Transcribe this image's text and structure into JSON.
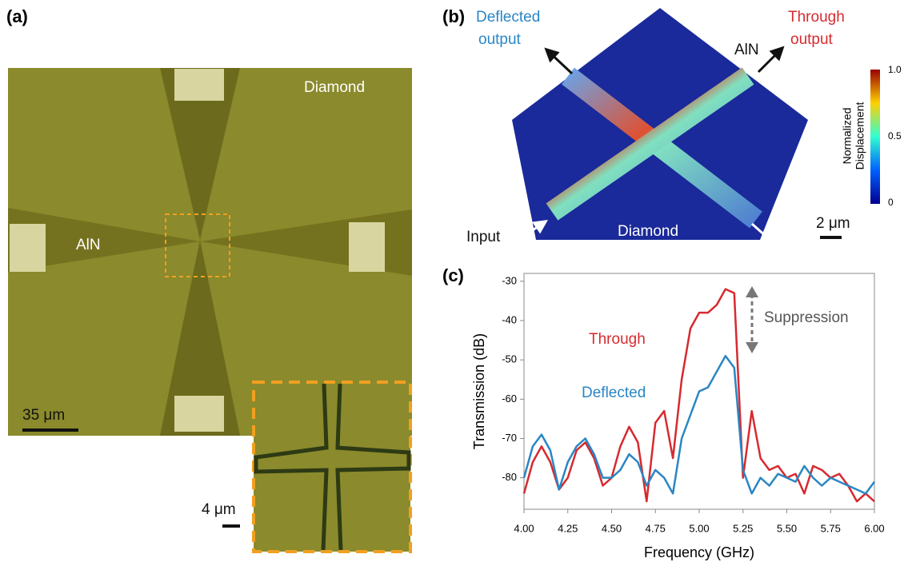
{
  "panels": {
    "a": {
      "label": "(a)",
      "diamond": "Diamond",
      "aln": "AlN",
      "scale_main": "35 μm",
      "scale_inset": "4 μm"
    },
    "b": {
      "label": "(b)",
      "deflected_output": [
        "Deflected",
        "output"
      ],
      "through_output": [
        "Through",
        "output"
      ],
      "aln": "AlN",
      "colorbar_title": [
        "Normalized",
        "Displacement"
      ],
      "colorbar_ticks": [
        "1.0",
        "0.5",
        "0"
      ],
      "input": "Input",
      "diamond": "Diamond",
      "scale": "2 μm"
    },
    "c": {
      "label": "(c)"
    }
  },
  "chart_data": {
    "type": "line",
    "x_label": "Frequency (GHz)",
    "y_label": "Transmission (dB)",
    "annotation": "Suppression",
    "x": [
      4.0,
      4.05,
      4.1,
      4.15,
      4.2,
      4.25,
      4.3,
      4.35,
      4.4,
      4.45,
      4.5,
      4.55,
      4.6,
      4.65,
      4.7,
      4.75,
      4.8,
      4.85,
      4.9,
      4.95,
      5.0,
      5.05,
      5.1,
      5.15,
      5.2,
      5.25,
      5.3,
      5.35,
      5.4,
      5.45,
      5.5,
      5.55,
      5.6,
      5.65,
      5.7,
      5.75,
      5.8,
      5.85,
      5.9,
      5.95,
      6.0
    ],
    "series": [
      {
        "name": "Through",
        "color": "#d62a2f",
        "values": [
          -84,
          -76,
          -72,
          -76,
          -83,
          -80,
          -73,
          -71,
          -75,
          -82,
          -80,
          -72,
          -67,
          -71,
          -86,
          -66,
          -63,
          -75,
          -55,
          -42,
          -38,
          -38,
          -36,
          -32,
          -33,
          -80,
          -63,
          -75,
          -78,
          -77,
          -80,
          -79,
          -84,
          -77,
          -78,
          -80,
          -79,
          -82,
          -86,
          -84,
          -86
        ]
      },
      {
        "name": "Deflected",
        "color": "#2a86c4",
        "values": [
          -80,
          -72,
          -69,
          -73,
          -83,
          -76,
          -72,
          -70,
          -74,
          -80,
          -80,
          -78,
          -74,
          -76,
          -82,
          -78,
          -80,
          -84,
          -70,
          -64,
          -58,
          -57,
          -53,
          -49,
          -52,
          -78,
          -84,
          -80,
          -82,
          -79,
          -80,
          -81,
          -77,
          -80,
          -82,
          -80,
          -81,
          -82,
          -83,
          -84,
          -81
        ]
      }
    ],
    "xlim": [
      4,
      6
    ],
    "xticks": [
      {
        "value": 4,
        "label": "4.00"
      },
      {
        "value": 4.25,
        "label": "4.25"
      },
      {
        "value": 4.5,
        "label": "4.50"
      },
      {
        "value": 4.75,
        "label": "4.75"
      },
      {
        "value": 5,
        "label": "5.00"
      },
      {
        "value": 5.25,
        "label": "5.25"
      },
      {
        "value": 5.5,
        "label": "5.50"
      },
      {
        "value": 5.75,
        "label": "5.75"
      },
      {
        "value": 6,
        "label": "6.00"
      }
    ],
    "ylim": [
      -88,
      -28
    ],
    "yticks": [
      -80,
      -70,
      -60,
      -50,
      -40,
      -30
    ]
  }
}
